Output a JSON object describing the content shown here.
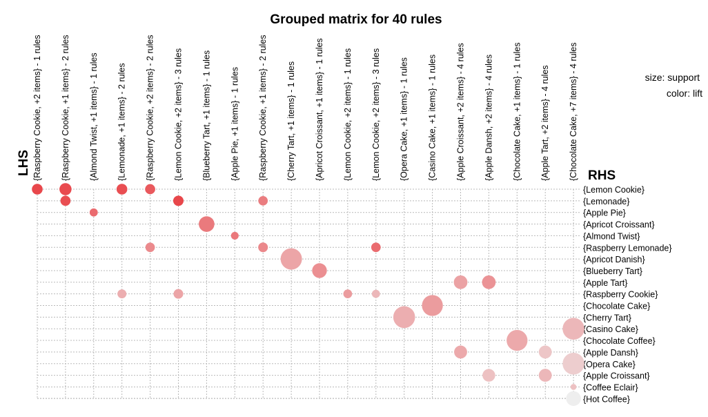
{
  "chart_data": {
    "type": "scatter",
    "title": "Grouped matrix for 40 rules",
    "xlabel": "LHS",
    "ylabel": "RHS",
    "legend": {
      "size": "size: support",
      "color": "color: lift"
    },
    "columns": [
      "{Raspberry Cookie, +2 items} - 1 rules",
      "{Raspberry Cookie, +1 items} - 2 rules",
      "{Almond Twist, +1 items} - 1 rules",
      "{Lemonade, +1 items} - 2 rules",
      "{Raspberry Cookie, +2 items} - 2 rules",
      "{Lemon Cookie, +2 items} - 3 rules",
      "{Blueberry Tart, +1 items} - 1 rules",
      "{Apple Pie, +1 items} - 1 rules",
      "{Raspberry Cookie, +1 items} - 2 rules",
      "{Cherry Tart, +1 items} - 1 rules",
      "{Apricot Croissant, +1 items} - 1 rules",
      "{Lemon Cookie, +2 items} - 1 rules",
      "{Lemon Cookie, +2 items} - 3 rules",
      "{Opera Cake, +1 items} - 1 rules",
      "{Casino Cake, +1 items} - 1 rules",
      "{Apple Croissant, +2 items} - 4 rules",
      "{Apple Dansh, +2 items} - 4 rules",
      "{Chocolate Cake, +1 items} - 1 rules",
      "{Apple Tart, +2 items} - 4 rules",
      "{Chocolate Cake, +7 items} - 4 rules"
    ],
    "rows": [
      "{Lemon Cookie}",
      "{Lemonade}",
      "{Apple Pie}",
      "{Apricot Croissant}",
      "{Almond Twist}",
      "{Raspberry Lemonade}",
      "{Apricot Danish}",
      "{Blueberry Tart}",
      "{Apple Tart}",
      "{Raspberry Cookie}",
      "{Chocolate Cake}",
      "{Cherry Tart}",
      "{Casino Cake}",
      "{Chocolate Coffee}",
      "{Apple Dansh}",
      "{Opera Cake}",
      "{Apple Croissant}",
      "{Coffee Eclair}",
      "{Hot Coffee}"
    ],
    "points": [
      {
        "col": 0,
        "row": 0,
        "support": 0.3,
        "lift": 0.92
      },
      {
        "col": 1,
        "row": 0,
        "support": 0.36,
        "lift": 0.9
      },
      {
        "col": 1,
        "row": 1,
        "support": 0.27,
        "lift": 0.88
      },
      {
        "col": 2,
        "row": 2,
        "support": 0.18,
        "lift": 0.72
      },
      {
        "col": 3,
        "row": 0,
        "support": 0.3,
        "lift": 0.88
      },
      {
        "col": 3,
        "row": 9,
        "support": 0.22,
        "lift": 0.35
      },
      {
        "col": 4,
        "row": 0,
        "support": 0.27,
        "lift": 0.82
      },
      {
        "col": 4,
        "row": 5,
        "support": 0.24,
        "lift": 0.55
      },
      {
        "col": 5,
        "row": 1,
        "support": 0.28,
        "lift": 0.92
      },
      {
        "col": 5,
        "row": 9,
        "support": 0.25,
        "lift": 0.4
      },
      {
        "col": 6,
        "row": 3,
        "support": 0.52,
        "lift": 0.64
      },
      {
        "col": 7,
        "row": 4,
        "support": 0.16,
        "lift": 0.65
      },
      {
        "col": 8,
        "row": 1,
        "support": 0.24,
        "lift": 0.62
      },
      {
        "col": 8,
        "row": 5,
        "support": 0.25,
        "lift": 0.56
      },
      {
        "col": 9,
        "row": 6,
        "support": 0.78,
        "lift": 0.4
      },
      {
        "col": 10,
        "row": 7,
        "support": 0.48,
        "lift": 0.52
      },
      {
        "col": 11,
        "row": 9,
        "support": 0.21,
        "lift": 0.45
      },
      {
        "col": 12,
        "row": 5,
        "support": 0.24,
        "lift": 0.72
      },
      {
        "col": 12,
        "row": 9,
        "support": 0.18,
        "lift": 0.3
      },
      {
        "col": 13,
        "row": 11,
        "support": 0.8,
        "lift": 0.35
      },
      {
        "col": 14,
        "row": 10,
        "support": 0.76,
        "lift": 0.45
      },
      {
        "col": 15,
        "row": 8,
        "support": 0.43,
        "lift": 0.42
      },
      {
        "col": 15,
        "row": 14,
        "support": 0.4,
        "lift": 0.38
      },
      {
        "col": 16,
        "row": 8,
        "support": 0.43,
        "lift": 0.5
      },
      {
        "col": 16,
        "row": 16,
        "support": 0.39,
        "lift": 0.25
      },
      {
        "col": 17,
        "row": 13,
        "support": 0.76,
        "lift": 0.38
      },
      {
        "col": 18,
        "row": 14,
        "support": 0.4,
        "lift": 0.22
      },
      {
        "col": 18,
        "row": 16,
        "support": 0.4,
        "lift": 0.3
      },
      {
        "col": 19,
        "row": 12,
        "support": 0.8,
        "lift": 0.3
      },
      {
        "col": 19,
        "row": 15,
        "support": 0.8,
        "lift": 0.18
      },
      {
        "col": 19,
        "row": 17,
        "support": 0.08,
        "lift": 0.25
      },
      {
        "col": 19,
        "row": 18,
        "support": 0.48,
        "lift": 0.0
      }
    ],
    "color_scale": {
      "low": "#eeeeee",
      "high": "#e8383d"
    },
    "grid": true
  }
}
